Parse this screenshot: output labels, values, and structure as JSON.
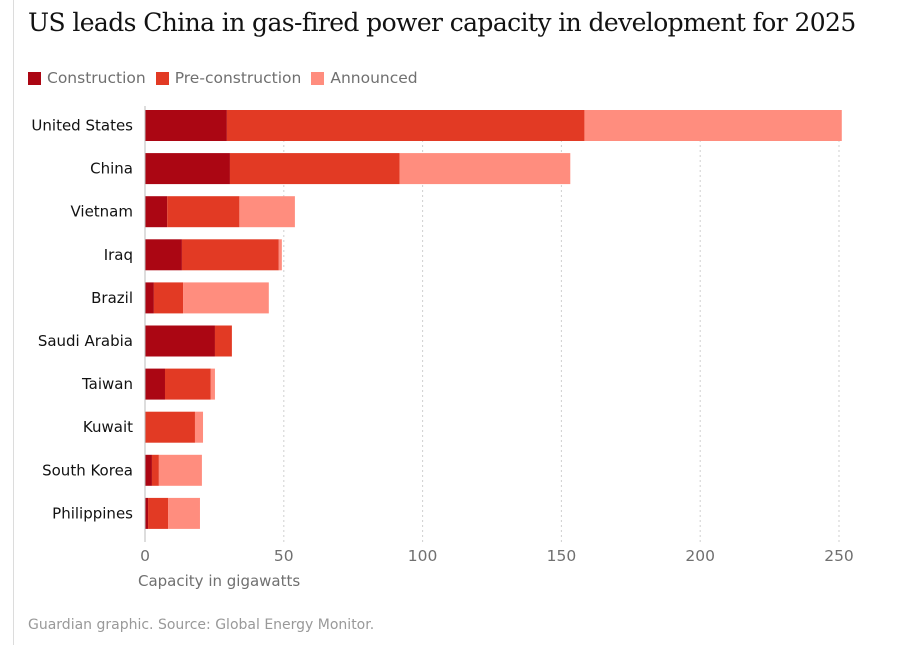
{
  "chart_data": {
    "type": "bar",
    "orientation": "horizontal",
    "stacked": true,
    "title": "US leads China in gas-fired power capacity in development for 2025",
    "xlabel": "Capacity in gigawatts",
    "ylabel": "",
    "xlim": [
      0,
      250
    ],
    "xticks": [
      0,
      50,
      100,
      150,
      200,
      250
    ],
    "grid": "vertical dotted",
    "legend_position": "top-left",
    "categories": [
      "United States",
      "China",
      "Vietnam",
      "Iraq",
      "Brazil",
      "Saudi Arabia",
      "Taiwan",
      "Kuwait",
      "South Korea",
      "Philippines"
    ],
    "series": [
      {
        "name": "Construction",
        "color": "#ab0613",
        "values": [
          29.5,
          30.6,
          8,
          13.3,
          3.2,
          25.2,
          7.2,
          0,
          2.5,
          1.1
        ]
      },
      {
        "name": "Pre-construction",
        "color": "#e23a24",
        "values": [
          128.8,
          61.1,
          26,
          34.9,
          10.5,
          6.1,
          16.5,
          18,
          2.5,
          7.2
        ]
      },
      {
        "name": "Announced",
        "color": "#ff8d7e",
        "values": [
          92.7,
          61.5,
          20,
          1.1,
          30.9,
          0,
          1.5,
          2.9,
          15.5,
          11.5
        ]
      }
    ],
    "source": "Guardian graphic. Source: Global Energy Monitor."
  }
}
